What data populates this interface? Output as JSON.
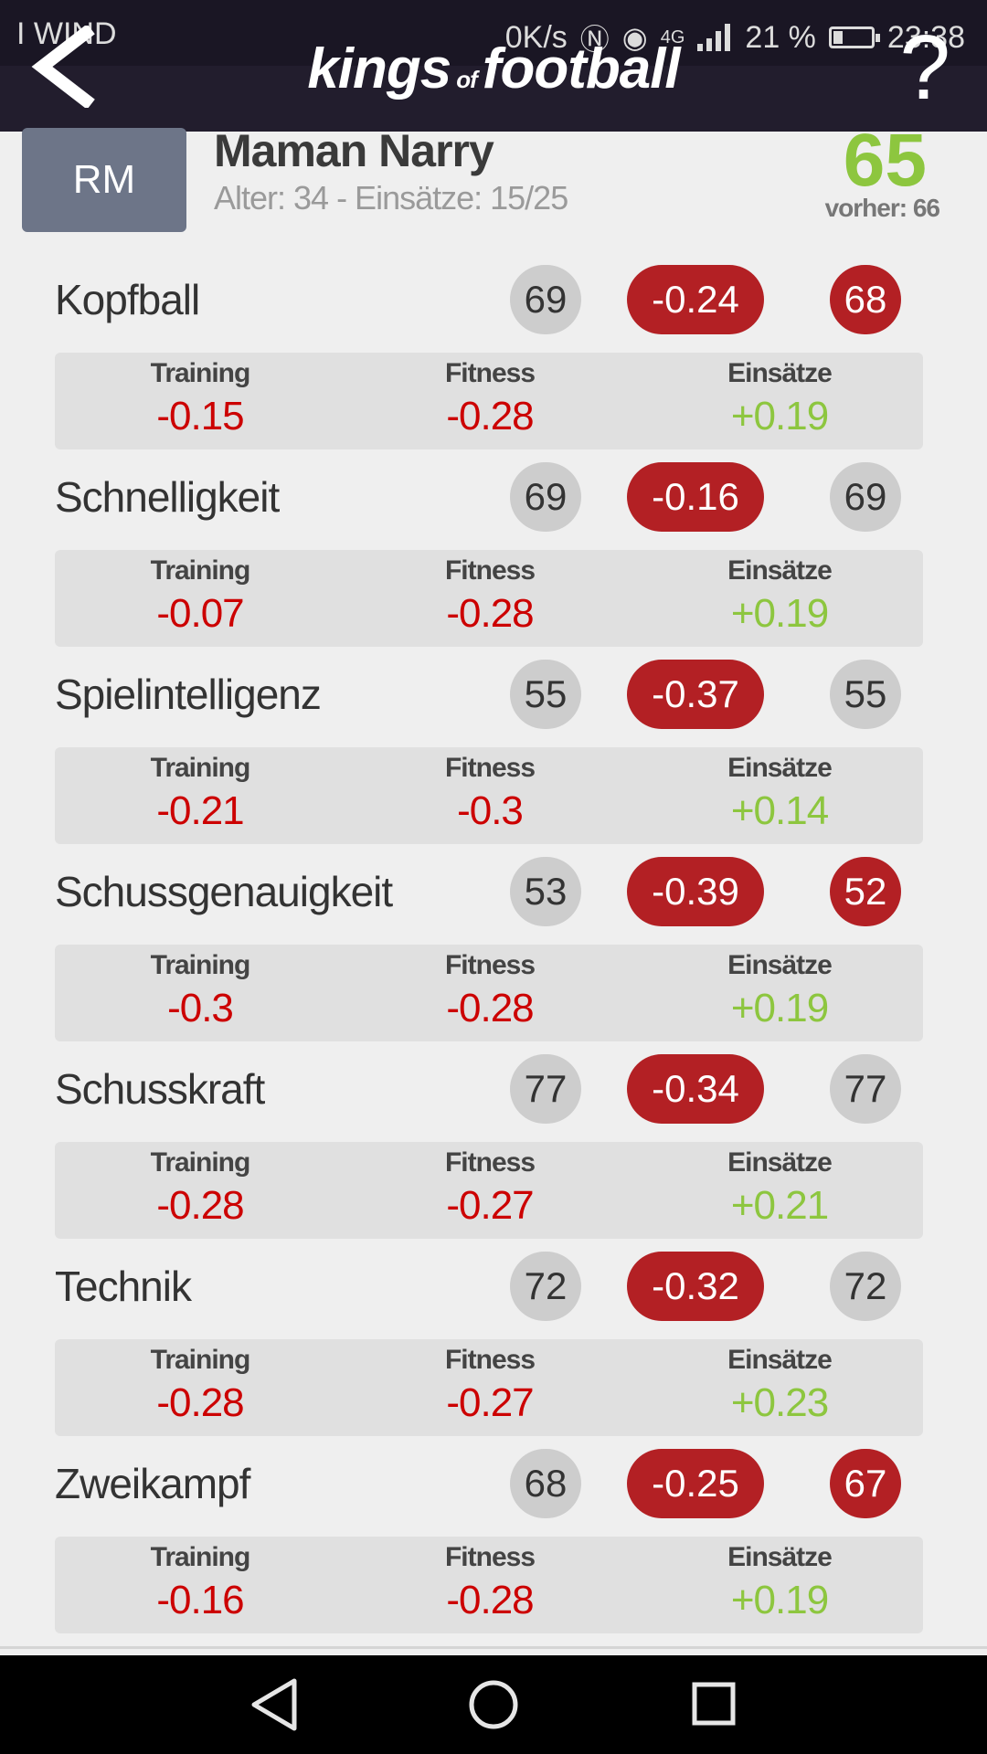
{
  "status_bar": {
    "carrier": "I WIND",
    "speed": "0K/s",
    "network": "4G",
    "battery": "21 %",
    "time": "23:38"
  },
  "header": {
    "logo_left": "kings",
    "logo_of": "of",
    "logo_right": "football",
    "help_label": "?",
    "icons": [
      "back-arrow-icon",
      "help-icon"
    ]
  },
  "player": {
    "position": "RM",
    "name": "Maman Narry",
    "meta": "Alter: 34 - Einsätze: 15/25",
    "rating": "65",
    "previous": "vorher: 66"
  },
  "labels": {
    "training": "Training",
    "fitness": "Fitness",
    "einsaetze": "Einsätze"
  },
  "skills": [
    {
      "name": "Kopfball",
      "base": "69",
      "change": "-0.24",
      "new": "68",
      "training": "-0.15",
      "fitness": "-0.28",
      "einsaetze": "+0.19"
    },
    {
      "name": "Schnelligkeit",
      "base": "69",
      "change": "-0.16",
      "new": "69",
      "training": "-0.07",
      "fitness": "-0.28",
      "einsaetze": "+0.19"
    },
    {
      "name": "Spielintelligenz",
      "base": "55",
      "change": "-0.37",
      "new": "55",
      "training": "-0.21",
      "fitness": "-0.3",
      "einsaetze": "+0.14"
    },
    {
      "name": "Schussgenauigkeit",
      "base": "53",
      "change": "-0.39",
      "new": "52",
      "training": "-0.3",
      "fitness": "-0.28",
      "einsaetze": "+0.19"
    },
    {
      "name": "Schusskraft",
      "base": "77",
      "change": "-0.34",
      "new": "77",
      "training": "-0.28",
      "fitness": "-0.27",
      "einsaetze": "+0.21"
    },
    {
      "name": "Technik",
      "base": "72",
      "change": "-0.32",
      "new": "72",
      "training": "-0.28",
      "fitness": "-0.27",
      "einsaetze": "+0.23"
    },
    {
      "name": "Zweikampf",
      "base": "68",
      "change": "-0.25",
      "new": "67",
      "training": "-0.16",
      "fitness": "-0.28",
      "einsaetze": "+0.19"
    }
  ],
  "colors": {
    "header_bg": "#221d2d",
    "rating_green": "#8dc63f",
    "decline_red": "#b32024",
    "negative_text": "#cc0000"
  },
  "navbar": {
    "icons": [
      "back-triangle-icon",
      "home-circle-icon",
      "recents-square-icon"
    ]
  }
}
